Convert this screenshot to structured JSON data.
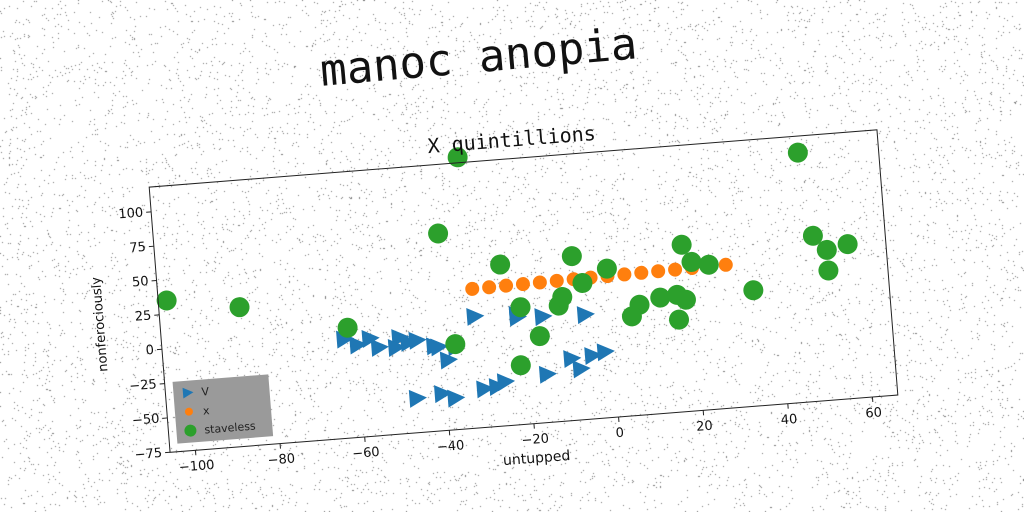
{
  "suptitle": "manoc anopia",
  "chart_data": {
    "type": "scatter",
    "title": "X quintillions",
    "xlabel": "untupped",
    "ylabel": "nonferociously",
    "xlim": [
      -106,
      66
    ],
    "ylim": [
      -75,
      118
    ],
    "xticks": [
      -100,
      -80,
      -60,
      -40,
      -20,
      0,
      20,
      40,
      60
    ],
    "yticks": [
      -75,
      -50,
      -25,
      0,
      25,
      50,
      75,
      100
    ],
    "grid": false,
    "legend_position": "lower-left",
    "series": [
      {
        "name": "V",
        "marker": "triangle-right",
        "color": "#1f77b4",
        "points": [
          [
            -63,
            -3
          ],
          [
            -57,
            -4
          ],
          [
            -60,
            -8
          ],
          [
            -50,
            -5
          ],
          [
            -46,
            -8
          ],
          [
            -41,
            -14
          ],
          [
            -37,
            -15
          ],
          [
            -32,
            6
          ],
          [
            -22,
            3
          ],
          [
            -16,
            2
          ],
          [
            -6,
            1
          ],
          [
            -5,
            -29
          ],
          [
            -10,
            -30
          ],
          [
            -48,
            -9
          ],
          [
            -42,
            -13
          ],
          [
            -55,
            -11
          ],
          [
            -51,
            -12
          ],
          [
            -39,
            -24
          ],
          [
            -47,
            -50
          ],
          [
            -41,
            -48
          ],
          [
            -38,
            -52
          ],
          [
            -31,
            -47
          ],
          [
            -28,
            -46
          ],
          [
            -16,
            -40
          ],
          [
            -8,
            -38
          ],
          [
            -2,
            -27
          ],
          [
            -22,
            5
          ],
          [
            -26,
            -43
          ]
        ]
      },
      {
        "name": "x",
        "marker": "circle",
        "color": "#ff7f0e",
        "points": [
          [
            -32,
            26
          ],
          [
            -28,
            26.2
          ],
          [
            -24,
            26.4
          ],
          [
            -20,
            26.6
          ],
          [
            -16,
            26.8
          ],
          [
            -12,
            27
          ],
          [
            -8,
            27.2
          ],
          [
            -4,
            27.4
          ],
          [
            0,
            27.6
          ],
          [
            4,
            27.8
          ],
          [
            8,
            28
          ],
          [
            12,
            28.2
          ],
          [
            16,
            28.4
          ],
          [
            20,
            28.6
          ],
          [
            24,
            28.8
          ],
          [
            28,
            29
          ]
        ]
      },
      {
        "name": "staveless",
        "marker": "circle",
        "color": "#2ca02c",
        "points": [
          [
            -104,
            35
          ],
          [
            -87,
            26
          ],
          [
            -86,
            -32
          ],
          [
            -62,
            5
          ],
          [
            -39,
            68
          ],
          [
            -33,
            122
          ],
          [
            -25,
            42
          ],
          [
            -37,
            -13
          ],
          [
            -21,
            10
          ],
          [
            -17,
            -12
          ],
          [
            -12,
            9
          ],
          [
            -11,
            15
          ],
          [
            -8,
            44
          ],
          [
            -6,
            24
          ],
          [
            0,
            33
          ],
          [
            7,
            5
          ],
          [
            5,
            -3
          ],
          [
            12,
            9
          ],
          [
            16,
            10
          ],
          [
            16,
            -8
          ],
          [
            18,
            6
          ],
          [
            18,
            46
          ],
          [
            20,
            33
          ],
          [
            24,
            30
          ],
          [
            34,
            9
          ],
          [
            47,
            106
          ],
          [
            49,
            45
          ],
          [
            52,
            34
          ],
          [
            57,
            37
          ],
          [
            52,
            19
          ],
          [
            -22,
            -32
          ]
        ]
      }
    ]
  }
}
